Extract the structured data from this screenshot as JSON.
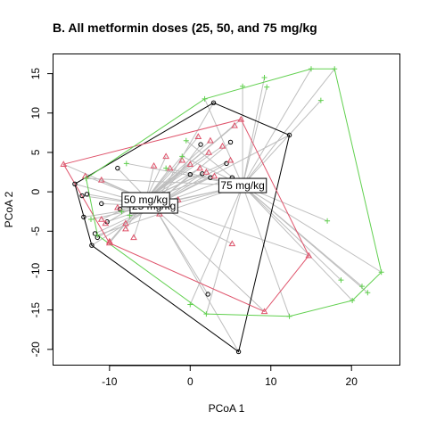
{
  "chart_data": {
    "type": "scatter",
    "title": "B. All metformin doses (25, 50, and 75 mg/kg",
    "xlabel": "PCoA 1",
    "ylabel": "PCoA 2",
    "xlim": [
      -17,
      26
    ],
    "ylim": [
      -22,
      17.5
    ],
    "xticks": [
      -10,
      0,
      10,
      20
    ],
    "yticks": [
      -20,
      -15,
      -10,
      -5,
      0,
      5,
      10,
      15
    ],
    "grid": false,
    "colors": {
      "25 mg/kg": "#000000",
      "50 mg/kg": "#DF536B",
      "75 mg/kg": "#61D04F",
      "spokes": "#BEBEBE"
    },
    "series": [
      {
        "name": "25 mg/kg",
        "marker": "circle",
        "centroid": [
          -4.5,
          -1.8
        ],
        "points": [
          [
            -14.3,
            1.0
          ],
          [
            -13.4,
            -0.5
          ],
          [
            -12.8,
            -0.3
          ],
          [
            -13.2,
            -3.2
          ],
          [
            -11.8,
            -5.3
          ],
          [
            -11.5,
            -5.8
          ],
          [
            -11.0,
            -1.5
          ],
          [
            -10.3,
            -3.8
          ],
          [
            -9.0,
            3.0
          ],
          [
            -8.7,
            -2.2
          ],
          [
            -7.5,
            -1.0
          ],
          [
            -6.0,
            -1.8
          ],
          [
            -5.5,
            -1.5
          ],
          [
            -4.5,
            -2.0
          ],
          [
            -4.0,
            -1.5
          ],
          [
            0.0,
            2.2
          ],
          [
            1.3,
            6.0
          ],
          [
            1.5,
            2.3
          ],
          [
            2.5,
            1.8
          ],
          [
            2.2,
            -13.0
          ],
          [
            2.9,
            11.3
          ],
          [
            4.5,
            3.6
          ],
          [
            5.0,
            6.3
          ],
          [
            5.2,
            1.8
          ],
          [
            6.0,
            -20.3
          ],
          [
            12.3,
            7.2
          ],
          [
            -12.2,
            -6.8
          ]
        ],
        "hull": [
          [
            -14.3,
            1.0
          ],
          [
            -12.2,
            -6.8
          ],
          [
            6.0,
            -20.3
          ],
          [
            12.3,
            7.2
          ],
          [
            2.9,
            11.3
          ],
          [
            -14.3,
            1.0
          ]
        ]
      },
      {
        "name": "50 mg/kg",
        "marker": "triangle",
        "centroid": [
          -5.5,
          -1.0
        ],
        "points": [
          [
            -15.7,
            3.5
          ],
          [
            -13.0,
            2.0
          ],
          [
            -11.0,
            1.5
          ],
          [
            -11.0,
            -3.5
          ],
          [
            -10.5,
            -4.0
          ],
          [
            -10.0,
            -6.3
          ],
          [
            -9.0,
            -2.0
          ],
          [
            -8.0,
            -4.7
          ],
          [
            -7.0,
            -5.8
          ],
          [
            -6.5,
            -1.3
          ],
          [
            -5.5,
            -2.0
          ],
          [
            -4.5,
            3.3
          ],
          [
            -3.8,
            -2.8
          ],
          [
            -3.0,
            4.5
          ],
          [
            -2.5,
            3.0
          ],
          [
            -1.5,
            -1.0
          ],
          [
            -1.0,
            4.0
          ],
          [
            0.0,
            3.5
          ],
          [
            1.0,
            7.0
          ],
          [
            1.2,
            3.0
          ],
          [
            2.0,
            2.5
          ],
          [
            2.3,
            5.0
          ],
          [
            2.5,
            6.5
          ],
          [
            3.0,
            2.0
          ],
          [
            4.0,
            5.8
          ],
          [
            5.0,
            4.0
          ],
          [
            5.5,
            8.4
          ],
          [
            5.2,
            -6.6
          ],
          [
            6.3,
            9.2
          ],
          [
            9.2,
            -15.2
          ],
          [
            14.7,
            -8.1
          ],
          [
            -10.0,
            -6.5
          ],
          [
            -8.0,
            -4.0
          ]
        ],
        "hull": [
          [
            -15.7,
            3.5
          ],
          [
            -10.0,
            -6.5
          ],
          [
            9.2,
            -15.2
          ],
          [
            14.7,
            -8.1
          ],
          [
            6.3,
            9.2
          ],
          [
            -15.7,
            3.5
          ]
        ]
      },
      {
        "name": "75 mg/kg",
        "marker": "plus",
        "centroid": [
          6.5,
          0.8
        ],
        "points": [
          [
            1.8,
            11.8
          ],
          [
            6.5,
            13.4
          ],
          [
            9.2,
            14.5
          ],
          [
            9.5,
            13.3
          ],
          [
            15.0,
            15.6
          ],
          [
            17.9,
            15.6
          ],
          [
            16.2,
            11.6
          ],
          [
            23.7,
            -10.2
          ],
          [
            22.0,
            -12.8
          ],
          [
            21.3,
            -12.0
          ],
          [
            20.1,
            -13.8
          ],
          [
            18.7,
            -11.2
          ],
          [
            17.0,
            -3.7
          ],
          [
            12.3,
            -15.8
          ],
          [
            2.0,
            -15.5
          ],
          [
            0.0,
            -14.3
          ],
          [
            -7.9,
            3.6
          ],
          [
            -3.0,
            3.0
          ],
          [
            -1.0,
            4.5
          ],
          [
            -0.5,
            6.5
          ],
          [
            -12.9,
            1.7
          ],
          [
            -12.3,
            -3.5
          ],
          [
            -8.5,
            -2.5
          ],
          [
            -7.5,
            -3.0
          ],
          [
            -11.5,
            -5.5
          ]
        ],
        "hull": [
          [
            -12.9,
            1.7
          ],
          [
            -11.5,
            -5.5
          ],
          [
            2.0,
            -15.5
          ],
          [
            12.3,
            -15.8
          ],
          [
            20.1,
            -13.8
          ],
          [
            23.7,
            -10.2
          ],
          [
            17.9,
            15.6
          ],
          [
            15.0,
            15.6
          ],
          [
            1.8,
            11.8
          ],
          [
            -12.9,
            1.7
          ]
        ]
      }
    ]
  }
}
